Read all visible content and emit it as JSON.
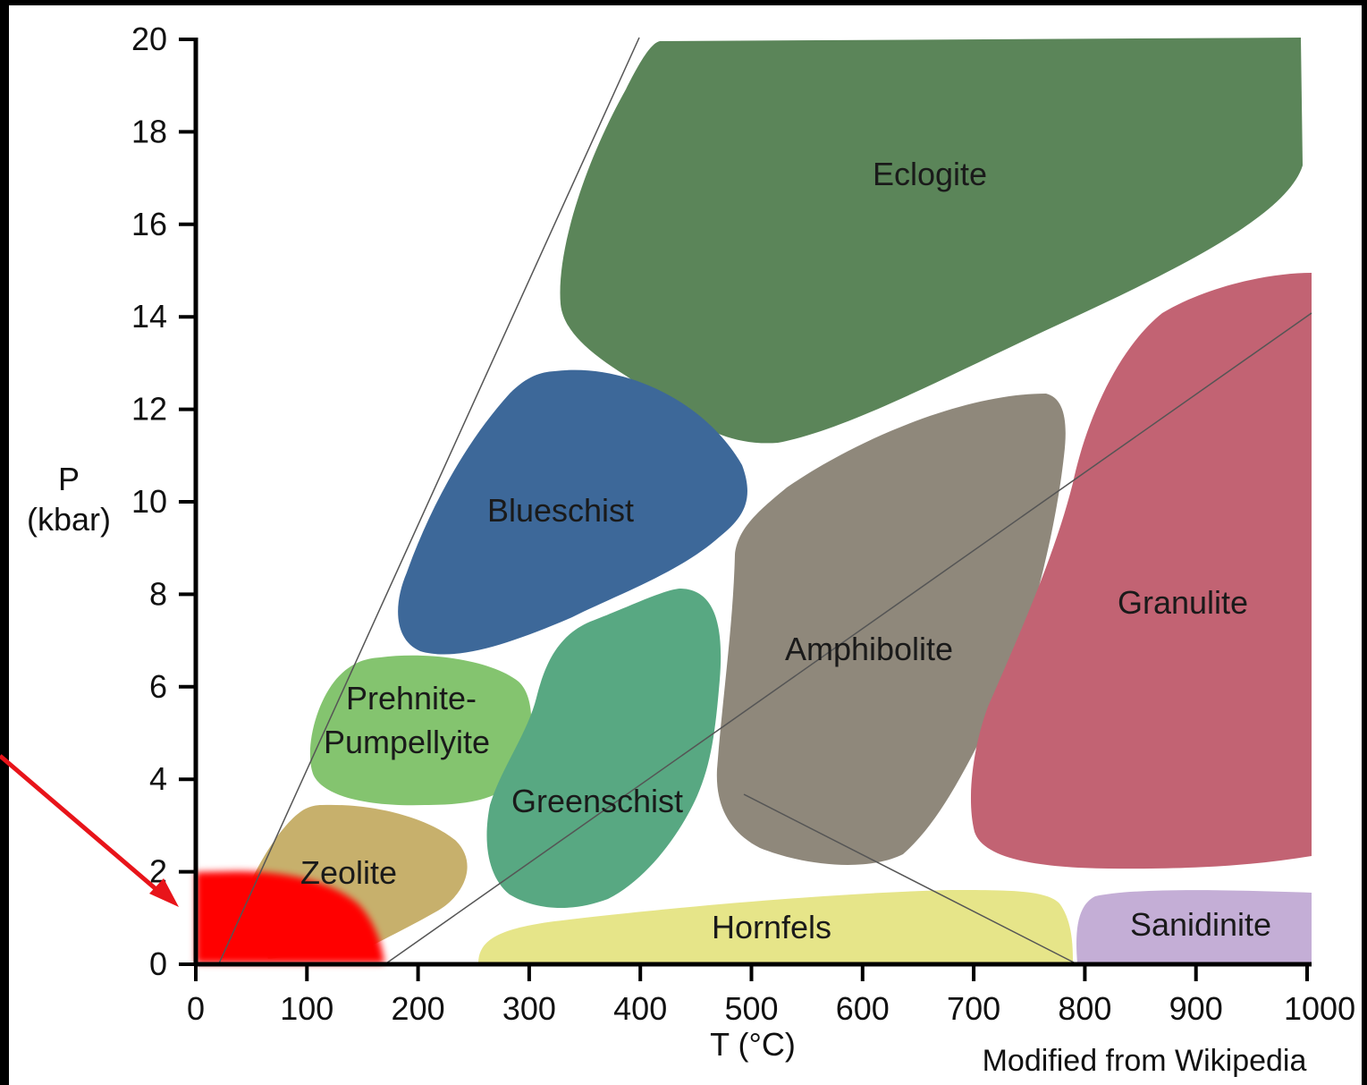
{
  "diagram": {
    "credit": "Modified from Wikipedia",
    "y_axis": {
      "title_line1": "P",
      "title_line2": "(kbar)",
      "ticks": [
        "0",
        "2",
        "4",
        "6",
        "8",
        "10",
        "12",
        "14",
        "16",
        "18",
        "20"
      ]
    },
    "x_axis": {
      "title": "T (°C)",
      "ticks": [
        "0",
        "100",
        "200",
        "300",
        "400",
        "500",
        "600",
        "700",
        "800",
        "900",
        "1000"
      ]
    },
    "facies": [
      {
        "id": "eclogite",
        "label": "Eclogite",
        "color": "#5b8559"
      },
      {
        "id": "blueschist",
        "label": "Blueschist",
        "color": "#3d6899"
      },
      {
        "id": "prehnite",
        "label_line1": "Prehnite-",
        "label_line2": "Pumpellyite",
        "color": "#84c46f"
      },
      {
        "id": "zeolite",
        "label": "Zeolite",
        "color": "#c7b06c"
      },
      {
        "id": "greenschist",
        "label": "Greenschist",
        "color": "#58a882"
      },
      {
        "id": "amphibolite",
        "label": "Amphibolite",
        "color": "#8f887b"
      },
      {
        "id": "granulite",
        "label": "Granulite",
        "color": "#c26373"
      },
      {
        "id": "hornfels",
        "label": "Hornfels",
        "color": "#e6e589"
      },
      {
        "id": "sanidinite",
        "label": "Sanidinite",
        "color": "#c4aed6"
      }
    ],
    "highlight_color": "#ff0000",
    "arrow_color": "#e8141a"
  }
}
